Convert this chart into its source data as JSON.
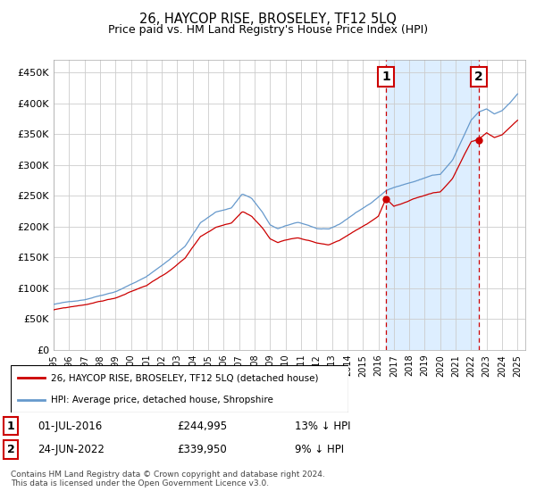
{
  "title": "26, HAYCOP RISE, BROSELEY, TF12 5LQ",
  "subtitle": "Price paid vs. HM Land Registry's House Price Index (HPI)",
  "hpi_label": "HPI: Average price, detached house, Shropshire",
  "property_label": "26, HAYCOP RISE, BROSELEY, TF12 5LQ (detached house)",
  "footnote": "Contains HM Land Registry data © Crown copyright and database right 2024.\nThis data is licensed under the Open Government Licence v3.0.",
  "sale1": {
    "date": "01-JUL-2016",
    "price": 244995,
    "label": "13% ↓ HPI",
    "num": "1"
  },
  "sale2": {
    "date": "24-JUN-2022",
    "price": 339950,
    "label": "9% ↓ HPI",
    "num": "2"
  },
  "sale1_x": 2016.5,
  "sale2_x": 2022.5,
  "hpi_color": "#6699cc",
  "hpi_fill_color": "#ddeeff",
  "property_color": "#cc0000",
  "dashed_line_color": "#cc0000",
  "grid_color": "#cccccc",
  "ylim": [
    0,
    470000
  ],
  "xlim": [
    1995,
    2025.5
  ],
  "ytick_vals": [
    0,
    50000,
    100000,
    150000,
    200000,
    250000,
    300000,
    350000,
    400000,
    450000
  ],
  "ytick_labels": [
    "£0",
    "£50K",
    "£100K",
    "£150K",
    "£200K",
    "£250K",
    "£300K",
    "£350K",
    "£400K",
    "£450K"
  ],
  "xtick_vals": [
    1995,
    1996,
    1997,
    1998,
    1999,
    2000,
    2001,
    2002,
    2003,
    2004,
    2005,
    2006,
    2007,
    2008,
    2009,
    2010,
    2011,
    2012,
    2013,
    2014,
    2015,
    2016,
    2017,
    2018,
    2019,
    2020,
    2021,
    2022,
    2023,
    2024,
    2025
  ]
}
